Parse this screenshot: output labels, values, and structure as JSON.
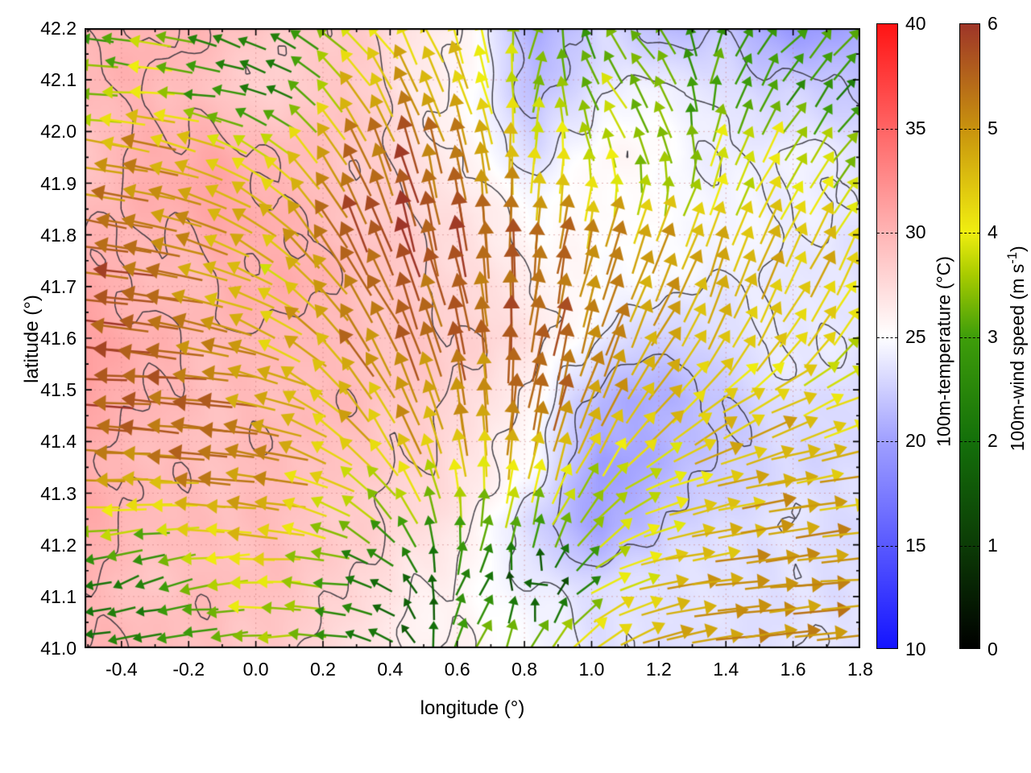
{
  "figure": {
    "background": "#ffffff"
  },
  "chart_data": {
    "type": "heatmap",
    "overlay": "quiver-vector-field",
    "title": "",
    "xlabel": "longitude (°)",
    "ylabel": "latitude (°)",
    "xlim": [
      -0.51,
      1.8
    ],
    "ylim": [
      41.0,
      42.2
    ],
    "grid": true,
    "xtick_values": [
      -0.4,
      -0.2,
      0.0,
      0.2,
      0.4,
      0.6,
      0.8,
      1.0,
      1.2,
      1.4,
      1.6,
      1.8
    ],
    "xtick_labels": [
      "-0.4",
      "-0.2",
      "0.0",
      "0.2",
      "0.4",
      "0.6",
      "0.8",
      "1.0",
      "1.2",
      "1.4",
      "1.6",
      "1.8"
    ],
    "ytick_values": [
      41.0,
      41.1,
      41.2,
      41.3,
      41.4,
      41.5,
      41.6,
      41.7,
      41.8,
      41.9,
      42.0,
      42.1,
      42.2
    ],
    "ytick_labels": [
      "41.0",
      "41.1",
      "41.2",
      "41.3",
      "41.4",
      "41.5",
      "41.6",
      "41.7",
      "41.8",
      "41.9",
      "42.0",
      "42.1",
      "42.2"
    ],
    "contour_color": "#2b2b33",
    "gridline_color": "rgba(200,120,120,0.55)",
    "colorbars": [
      {
        "id": "temperature",
        "label": "100m-temperature (°C)",
        "min": 10,
        "max": 40,
        "tick_values": [
          10,
          15,
          20,
          25,
          30,
          35,
          40
        ],
        "tick_labels": [
          "10",
          "15",
          "20",
          "25",
          "30",
          "35",
          "40"
        ],
        "stops": [
          [
            "#1414ff",
            10
          ],
          [
            "#5a5aff",
            15
          ],
          [
            "#a0a0ff",
            20
          ],
          [
            "#ffffff",
            25
          ],
          [
            "#ffb4b4",
            30
          ],
          [
            "#ff6464",
            35
          ],
          [
            "#ff1414",
            40
          ]
        ]
      },
      {
        "id": "windspeed",
        "label_prefix": "100m-wind speed (m s",
        "label_sup": "-1",
        "label_suffix": ")",
        "min": 0,
        "max": 6,
        "tick_values": [
          0,
          1,
          2,
          3,
          4,
          5,
          6
        ],
        "tick_labels": [
          "0",
          "1",
          "2",
          "3",
          "4",
          "5",
          "6"
        ],
        "stops": [
          [
            "#000000",
            0
          ],
          [
            "#0c3c06",
            1
          ],
          [
            "#14700a",
            2
          ],
          [
            "#3f9e0a",
            3
          ],
          [
            "#aacc00",
            3.6
          ],
          [
            "#f0ee10",
            4
          ],
          [
            "#c8920e",
            5
          ],
          [
            "#9e3528",
            6
          ]
        ]
      }
    ],
    "temperature_grid": {
      "lon_range": [
        -0.51,
        1.8
      ],
      "lat_range": [
        41.0,
        42.2
      ],
      "ncols": 13,
      "nrows": 11,
      "row_order": "north-to-south",
      "values_degC": [
        [
          30.0,
          30.0,
          29.5,
          28.5,
          29.0,
          27.0,
          25.5,
          20.0,
          23.0,
          21.5,
          22.0,
          19.0,
          20.5
        ],
        [
          29.5,
          30.0,
          29.0,
          28.0,
          29.0,
          26.5,
          25.0,
          21.5,
          24.0,
          24.5,
          23.0,
          22.5,
          22.0
        ],
        [
          29.0,
          30.5,
          30.5,
          29.5,
          29.0,
          27.5,
          25.5,
          23.0,
          25.5,
          25.0,
          24.0,
          24.5,
          23.5
        ],
        [
          29.5,
          30.0,
          31.0,
          30.5,
          29.0,
          28.0,
          26.5,
          25.0,
          25.5,
          25.0,
          24.5,
          24.0,
          23.5
        ],
        [
          31.0,
          29.5,
          30.0,
          30.5,
          29.5,
          28.5,
          27.5,
          26.0,
          25.0,
          24.5,
          24.0,
          24.0,
          23.5
        ],
        [
          31.5,
          30.0,
          29.5,
          30.0,
          29.5,
          29.0,
          28.0,
          26.5,
          24.0,
          22.5,
          23.5,
          24.0,
          23.5
        ],
        [
          31.0,
          30.0,
          29.5,
          29.5,
          29.5,
          28.5,
          27.5,
          25.5,
          21.0,
          20.5,
          22.0,
          23.5,
          23.0
        ],
        [
          30.5,
          29.5,
          29.0,
          29.5,
          29.0,
          28.5,
          27.0,
          24.5,
          19.5,
          21.0,
          22.5,
          23.0,
          23.0
        ],
        [
          30.5,
          29.5,
          29.5,
          29.5,
          28.5,
          27.5,
          26.0,
          22.5,
          20.0,
          22.5,
          23.0,
          23.5,
          23.0
        ],
        [
          30.0,
          29.0,
          29.5,
          29.0,
          28.0,
          26.5,
          25.5,
          24.0,
          23.0,
          23.5,
          23.5,
          23.5,
          23.5
        ],
        [
          30.0,
          29.5,
          29.0,
          28.5,
          27.5,
          26.0,
          25.5,
          24.5,
          23.5,
          23.5,
          23.5,
          23.5,
          23.5
        ]
      ]
    },
    "wind_grid": {
      "ncols": 13,
      "nrows": 11,
      "row_order": "north-to-south",
      "u_ms": [
        [
          -2.5,
          -3.5,
          -2.2,
          -2.0,
          -3.0,
          -2.0,
          -1.0,
          1.0,
          -1.5,
          -2.0,
          1.5,
          2.0,
          2.5
        ],
        [
          -3.0,
          -4.0,
          -2.5,
          -2.0,
          -2.5,
          -2.0,
          -1.5,
          0.5,
          -2.0,
          -1.5,
          1.0,
          1.5,
          1.5
        ],
        [
          -4.5,
          -5.0,
          -4.0,
          -3.0,
          -2.5,
          -1.5,
          -1.0,
          0.5,
          -1.0,
          -1.0,
          1.5,
          2.0,
          2.0
        ],
        [
          -5.5,
          -5.0,
          -4.5,
          -3.5,
          -2.5,
          -1.5,
          -0.5,
          0.5,
          1.0,
          1.5,
          1.5,
          2.0,
          2.0
        ],
        [
          -5.5,
          -5.5,
          -4.5,
          -3.5,
          -3.0,
          -2.0,
          -1.0,
          0.5,
          1.5,
          2.0,
          1.5,
          2.0,
          2.0
        ],
        [
          -6.0,
          -5.5,
          -5.0,
          -4.0,
          -3.0,
          -2.0,
          -1.0,
          1.0,
          1.5,
          2.5,
          2.0,
          2.5,
          2.5
        ],
        [
          -6.0,
          -5.5,
          -5.5,
          -4.5,
          -3.0,
          -2.0,
          -0.5,
          1.0,
          2.0,
          3.0,
          3.5,
          4.0,
          3.5
        ],
        [
          -5.5,
          -5.0,
          -5.5,
          -5.0,
          -3.5,
          -2.0,
          -0.5,
          1.0,
          2.0,
          3.5,
          4.5,
          4.5,
          4.5
        ],
        [
          -4.0,
          -3.5,
          -4.5,
          -4.5,
          -3.0,
          -1.5,
          0.5,
          1.0,
          2.5,
          4.0,
          4.5,
          5.0,
          4.5
        ],
        [
          -1.8,
          -2.2,
          -3.5,
          -4.0,
          -2.5,
          -1.0,
          1.5,
          -1.5,
          3.0,
          4.5,
          5.0,
          5.0,
          5.0
        ],
        [
          -2.0,
          -2.5,
          -3.0,
          -3.5,
          -2.5,
          -1.0,
          1.5,
          2.0,
          3.5,
          4.5,
          5.0,
          5.0,
          5.0
        ]
      ],
      "v_ms": [
        [
          0.2,
          0.3,
          0.5,
          0.8,
          2.0,
          3.5,
          4.0,
          3.0,
          2.5,
          2.5,
          2.5,
          2.0,
          2.5
        ],
        [
          0.3,
          0.5,
          0.5,
          1.0,
          3.5,
          4.5,
          4.0,
          3.5,
          3.0,
          3.0,
          3.0,
          2.5,
          2.0
        ],
        [
          0.5,
          1.0,
          1.5,
          2.5,
          4.5,
          5.5,
          5.0,
          4.0,
          3.5,
          3.0,
          3.5,
          3.0,
          2.5
        ],
        [
          1.0,
          1.0,
          2.0,
          3.0,
          5.0,
          5.5,
          5.5,
          5.0,
          4.5,
          4.0,
          4.0,
          4.0,
          3.5
        ],
        [
          0.5,
          1.0,
          1.5,
          2.5,
          4.5,
          5.5,
          5.5,
          5.5,
          5.0,
          4.5,
          4.5,
          4.0,
          4.0
        ],
        [
          0.5,
          0.5,
          1.0,
          2.0,
          4.0,
          5.0,
          5.5,
          5.5,
          5.0,
          4.0,
          4.0,
          3.5,
          3.0
        ],
        [
          0.3,
          0.5,
          0.5,
          1.5,
          3.5,
          4.5,
          5.0,
          5.5,
          4.5,
          3.5,
          2.5,
          2.0,
          1.5
        ],
        [
          0.2,
          0.3,
          0.5,
          1.0,
          2.5,
          4.0,
          4.5,
          4.5,
          3.5,
          2.0,
          1.5,
          1.0,
          1.0
        ],
        [
          -0.3,
          -0.3,
          0.3,
          0.5,
          1.5,
          2.5,
          3.0,
          3.0,
          2.5,
          1.0,
          0.8,
          0.8,
          0.5
        ],
        [
          -0.5,
          -0.8,
          -0.5,
          0.3,
          0.5,
          1.5,
          2.5,
          0.5,
          2.0,
          1.0,
          0.5,
          0.5,
          0.3
        ],
        [
          -0.5,
          -0.5,
          -0.5,
          -0.3,
          0.3,
          1.0,
          3.0,
          3.5,
          3.0,
          1.5,
          0.5,
          0.5,
          0.3
        ]
      ]
    },
    "contour_levels_degC": [
      22,
      24,
      26,
      28,
      30
    ]
  }
}
